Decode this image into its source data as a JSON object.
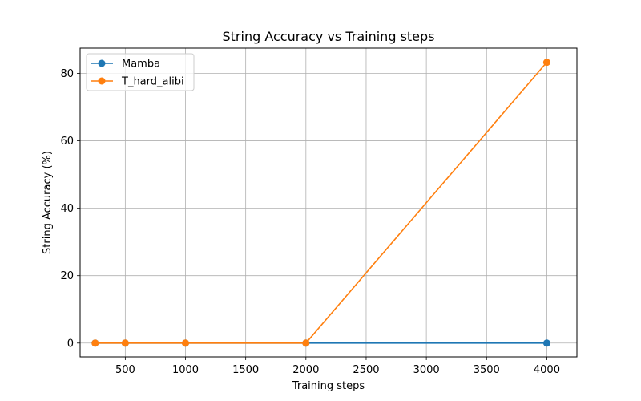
{
  "chart_data": {
    "type": "line",
    "title": "String Accuracy vs Training steps",
    "xlabel": "Training steps",
    "ylabel": "String Accuracy (%)",
    "x": [
      250,
      500,
      1000,
      2000,
      4000
    ],
    "xlim": [
      125,
      4250
    ],
    "ylim": [
      -4.1,
      87.5
    ],
    "xticks": [
      500,
      1000,
      1500,
      2000,
      2500,
      3000,
      3500,
      4000
    ],
    "yticks": [
      0,
      20,
      40,
      60,
      80
    ],
    "grid": true,
    "legend_position": "top-left",
    "series": [
      {
        "name": "Mamba",
        "color": "#1f77b4",
        "values": [
          0,
          0,
          0,
          0,
          0
        ]
      },
      {
        "name": "T_hard_alibi",
        "color": "#ff7f0e",
        "values": [
          0,
          0,
          0,
          0,
          83.3
        ]
      }
    ]
  }
}
